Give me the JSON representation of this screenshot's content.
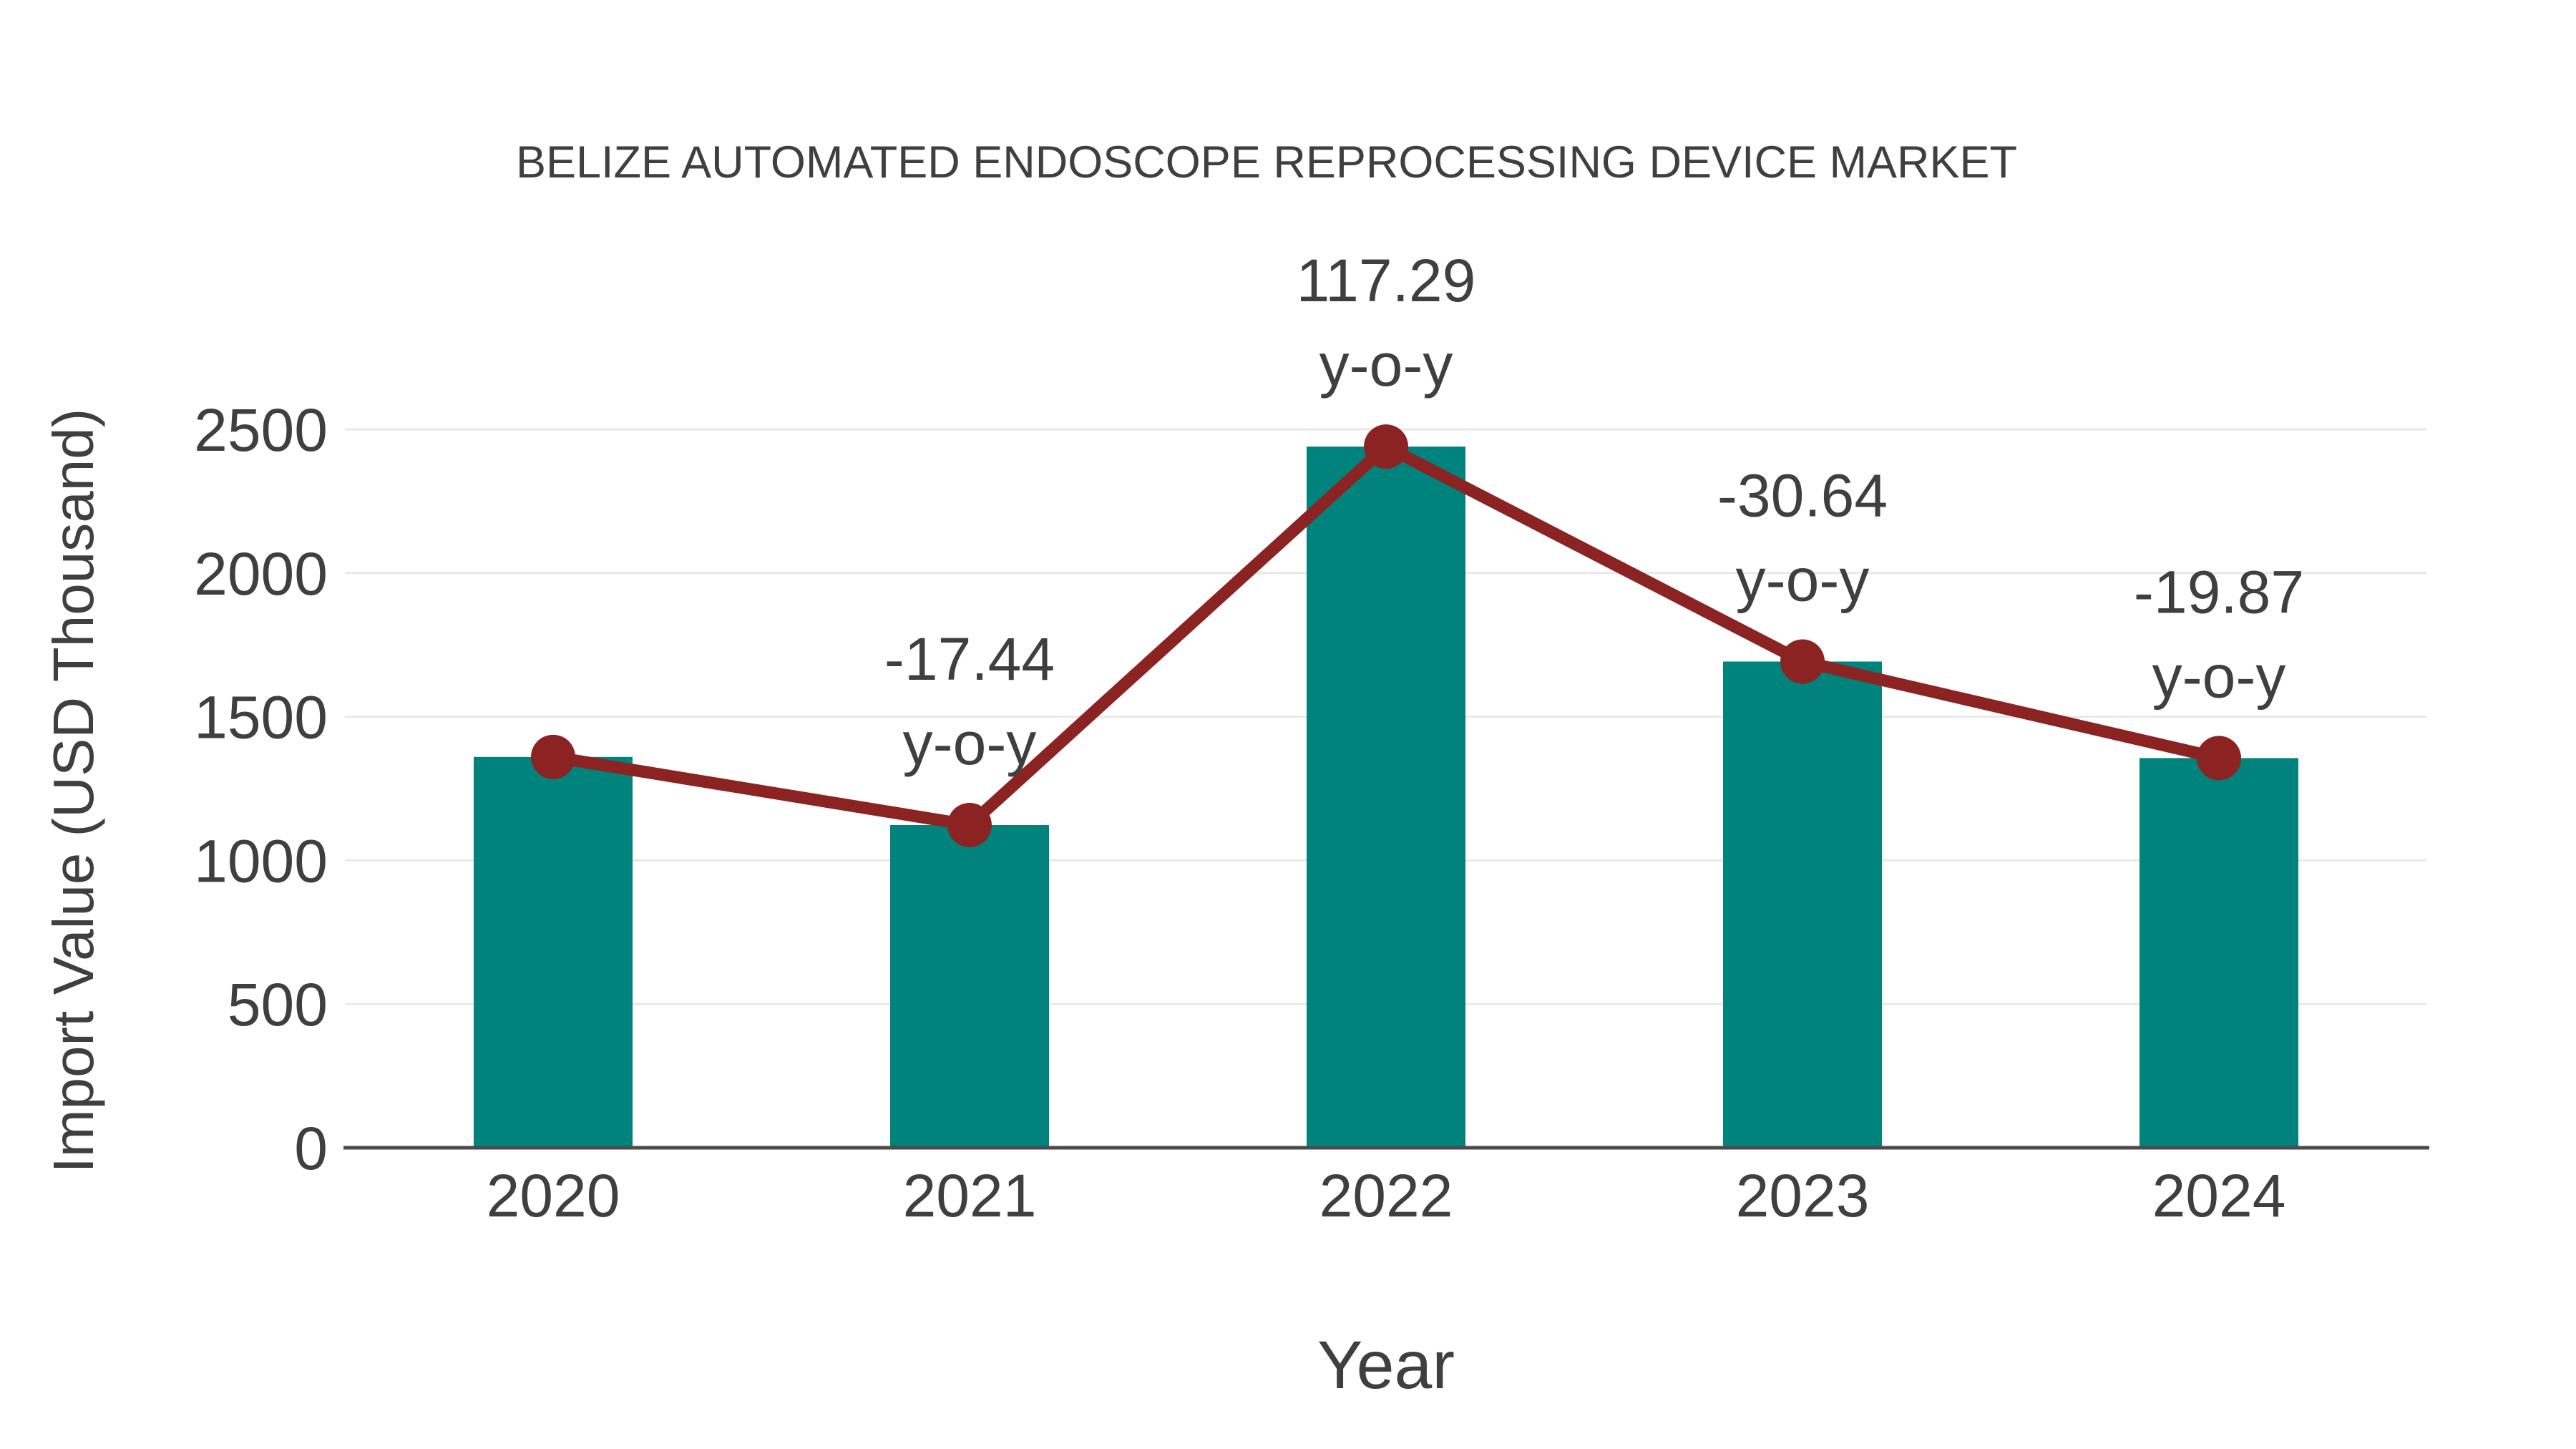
{
  "chart_data": {
    "type": "bar",
    "title": "BELIZE AUTOMATED ENDOSCOPE REPROCESSING DEVICE MARKET",
    "xlabel": "Year",
    "ylabel": "Import Value (USD Thousand)",
    "categories": [
      "2020",
      "2021",
      "2022",
      "2023",
      "2024"
    ],
    "series": [
      {
        "name": "Import Value",
        "type": "bar",
        "values": [
          1360,
          1123,
          2440,
          1692,
          1356
        ]
      },
      {
        "name": "Trend",
        "type": "line",
        "values": [
          1360,
          1123,
          2440,
          1692,
          1356
        ]
      }
    ],
    "annotations": [
      {
        "category": "2021",
        "value_label": "-17.44",
        "suffix_label": "y-o-y"
      },
      {
        "category": "2022",
        "value_label": "117.29",
        "suffix_label": "y-o-y"
      },
      {
        "category": "2023",
        "value_label": "-30.64",
        "suffix_label": "y-o-y"
      },
      {
        "category": "2024",
        "value_label": "-19.87",
        "suffix_label": "y-o-y"
      }
    ],
    "yticks": [
      0,
      500,
      1000,
      1500,
      2000,
      2500
    ],
    "ylim": [
      0,
      2500
    ],
    "grid": true,
    "legend": "none",
    "colors": {
      "bar": "#00827d",
      "line": "#8b2322",
      "marker": "#8b2322",
      "text": "#3f3f3f",
      "grid": "#e8e8e8",
      "axis": "#4b4b4b",
      "background": "#ffffff"
    }
  }
}
